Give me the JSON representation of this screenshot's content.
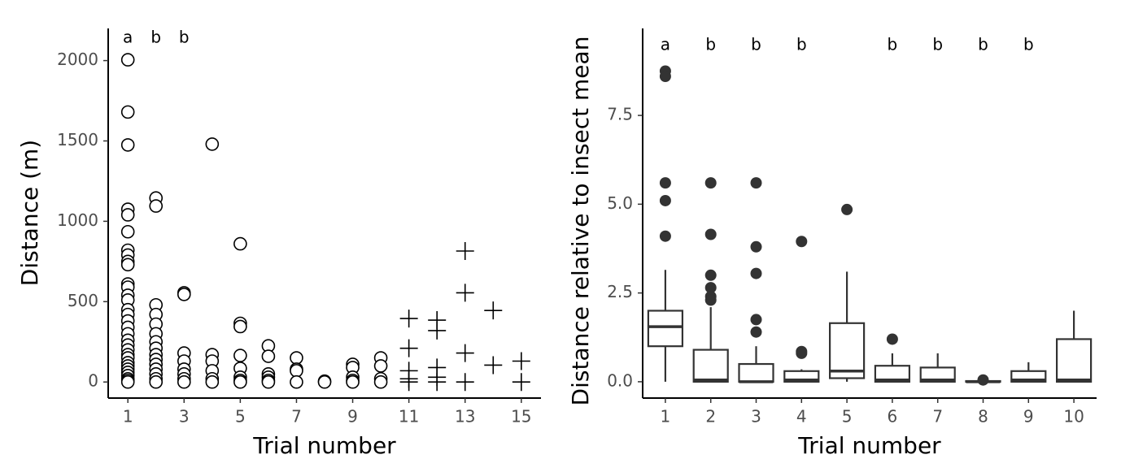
{
  "chart_data": [
    {
      "type": "scatter",
      "xlabel": "Trial number",
      "ylabel": "Distance (m)",
      "xlim": [
        0.3,
        15.7
      ],
      "ylim": [
        -100,
        2200
      ],
      "xticks": [
        1,
        3,
        5,
        7,
        9,
        11,
        13,
        15
      ],
      "yticks": [
        0,
        500,
        1000,
        1500,
        2000
      ],
      "color": "#000000",
      "series": [
        {
          "marker": "circle",
          "x": [
            1,
            1,
            1,
            1,
            1,
            1,
            1,
            1,
            1,
            1,
            1,
            1,
            1,
            1,
            1,
            1,
            1,
            1,
            1,
            1,
            1,
            1,
            1,
            1,
            1,
            1,
            1,
            1,
            1,
            1,
            1,
            1,
            2,
            2,
            2,
            2,
            2,
            2,
            2,
            2,
            2,
            2,
            2,
            2,
            2,
            2,
            2,
            3,
            3,
            3,
            3,
            3,
            3,
            3,
            3,
            4,
            4,
            4,
            4,
            4,
            4,
            5,
            5,
            5,
            5,
            5,
            5,
            5,
            5,
            6,
            6,
            6,
            6,
            6,
            6,
            7,
            7,
            7,
            7,
            8,
            8,
            9,
            9,
            9,
            9,
            9,
            10,
            10,
            10,
            10
          ],
          "values": [
            2005,
            1680,
            1475,
            1075,
            1040,
            935,
            820,
            790,
            750,
            730,
            610,
            590,
            540,
            510,
            450,
            420,
            380,
            340,
            300,
            260,
            230,
            200,
            170,
            150,
            120,
            100,
            80,
            60,
            40,
            20,
            10,
            0,
            1145,
            1095,
            480,
            420,
            360,
            300,
            250,
            210,
            170,
            140,
            110,
            80,
            50,
            20,
            0,
            555,
            545,
            180,
            130,
            80,
            50,
            20,
            0,
            1480,
            170,
            130,
            70,
            20,
            0,
            860,
            365,
            345,
            165,
            85,
            30,
            10,
            0,
            225,
            160,
            50,
            30,
            10,
            0,
            150,
            80,
            70,
            0,
            5,
            0,
            110,
            90,
            30,
            10,
            0,
            150,
            100,
            20,
            0
          ]
        },
        {
          "marker": "plus",
          "x": [
            11,
            11,
            11,
            11,
            11,
            12,
            12,
            12,
            12,
            12,
            13,
            13,
            13,
            13,
            14,
            14,
            15,
            15
          ],
          "values": [
            395,
            210,
            70,
            20,
            0,
            385,
            320,
            90,
            30,
            0,
            815,
            555,
            180,
            0,
            445,
            105,
            130,
            0
          ]
        }
      ],
      "annotations": [
        {
          "x": 1,
          "text": "a"
        },
        {
          "x": 2,
          "text": "b"
        },
        {
          "x": 3,
          "text": "b"
        }
      ]
    },
    {
      "type": "box",
      "xlabel": "Trial number",
      "ylabel": "Distance relative to insect mean",
      "categories": [
        "1",
        "2",
        "3",
        "4",
        "5",
        "6",
        "7",
        "8",
        "9",
        "10"
      ],
      "ylim": [
        -0.46,
        9.95
      ],
      "yticks": [
        {
          "value": 0,
          "label": "0.0"
        },
        2.5,
        {
          "value": 5,
          "label": "5.0"
        },
        7.5
      ],
      "color": "#333333",
      "boxes": [
        {
          "whislo": 0,
          "q1": 1.0,
          "med": 1.55,
          "q3": 2.0,
          "whishi": 3.15,
          "fliers": [
            8.75,
            8.6,
            5.6,
            5.1,
            4.1
          ]
        },
        {
          "whislo": 0,
          "q1": 0,
          "med": 0.05,
          "q3": 0.9,
          "whishi": 2.1,
          "fliers": [
            5.6,
            4.15,
            3.0,
            2.65,
            2.4,
            2.3
          ]
        },
        {
          "whislo": 0,
          "q1": 0,
          "med": 0,
          "q3": 0.5,
          "whishi": 1.0,
          "fliers": [
            5.6,
            3.8,
            3.05,
            1.75,
            1.4
          ]
        },
        {
          "whislo": 0,
          "q1": 0,
          "med": 0.05,
          "q3": 0.3,
          "whishi": 0.35,
          "fliers": [
            3.95,
            0.85,
            0.8
          ]
        },
        {
          "whislo": 0,
          "q1": 0.1,
          "med": 0.3,
          "q3": 1.65,
          "whishi": 3.1,
          "fliers": [
            4.85
          ]
        },
        {
          "whislo": 0,
          "q1": 0,
          "med": 0.05,
          "q3": 0.45,
          "whishi": 0.8,
          "fliers": [
            1.2
          ]
        },
        {
          "whislo": 0,
          "q1": 0,
          "med": 0.05,
          "q3": 0.4,
          "whishi": 0.8,
          "fliers": []
        },
        {
          "whislo": 0,
          "q1": 0,
          "med": 0,
          "q3": 0.02,
          "whishi": 0.05,
          "fliers": [
            0.05
          ]
        },
        {
          "whislo": 0,
          "q1": 0,
          "med": 0.05,
          "q3": 0.3,
          "whishi": 0.55,
          "fliers": []
        },
        {
          "whislo": 0,
          "q1": 0,
          "med": 0.05,
          "q3": 1.2,
          "whishi": 2.0,
          "fliers": []
        }
      ],
      "annotations": [
        {
          "category": "1",
          "text": "a"
        },
        {
          "category": "2",
          "text": "b"
        },
        {
          "category": "3",
          "text": "b"
        },
        {
          "category": "4",
          "text": "b"
        },
        {
          "category": "6",
          "text": "b"
        },
        {
          "category": "7",
          "text": "b"
        },
        {
          "category": "8",
          "text": "b"
        },
        {
          "category": "9",
          "text": "b"
        }
      ]
    }
  ]
}
